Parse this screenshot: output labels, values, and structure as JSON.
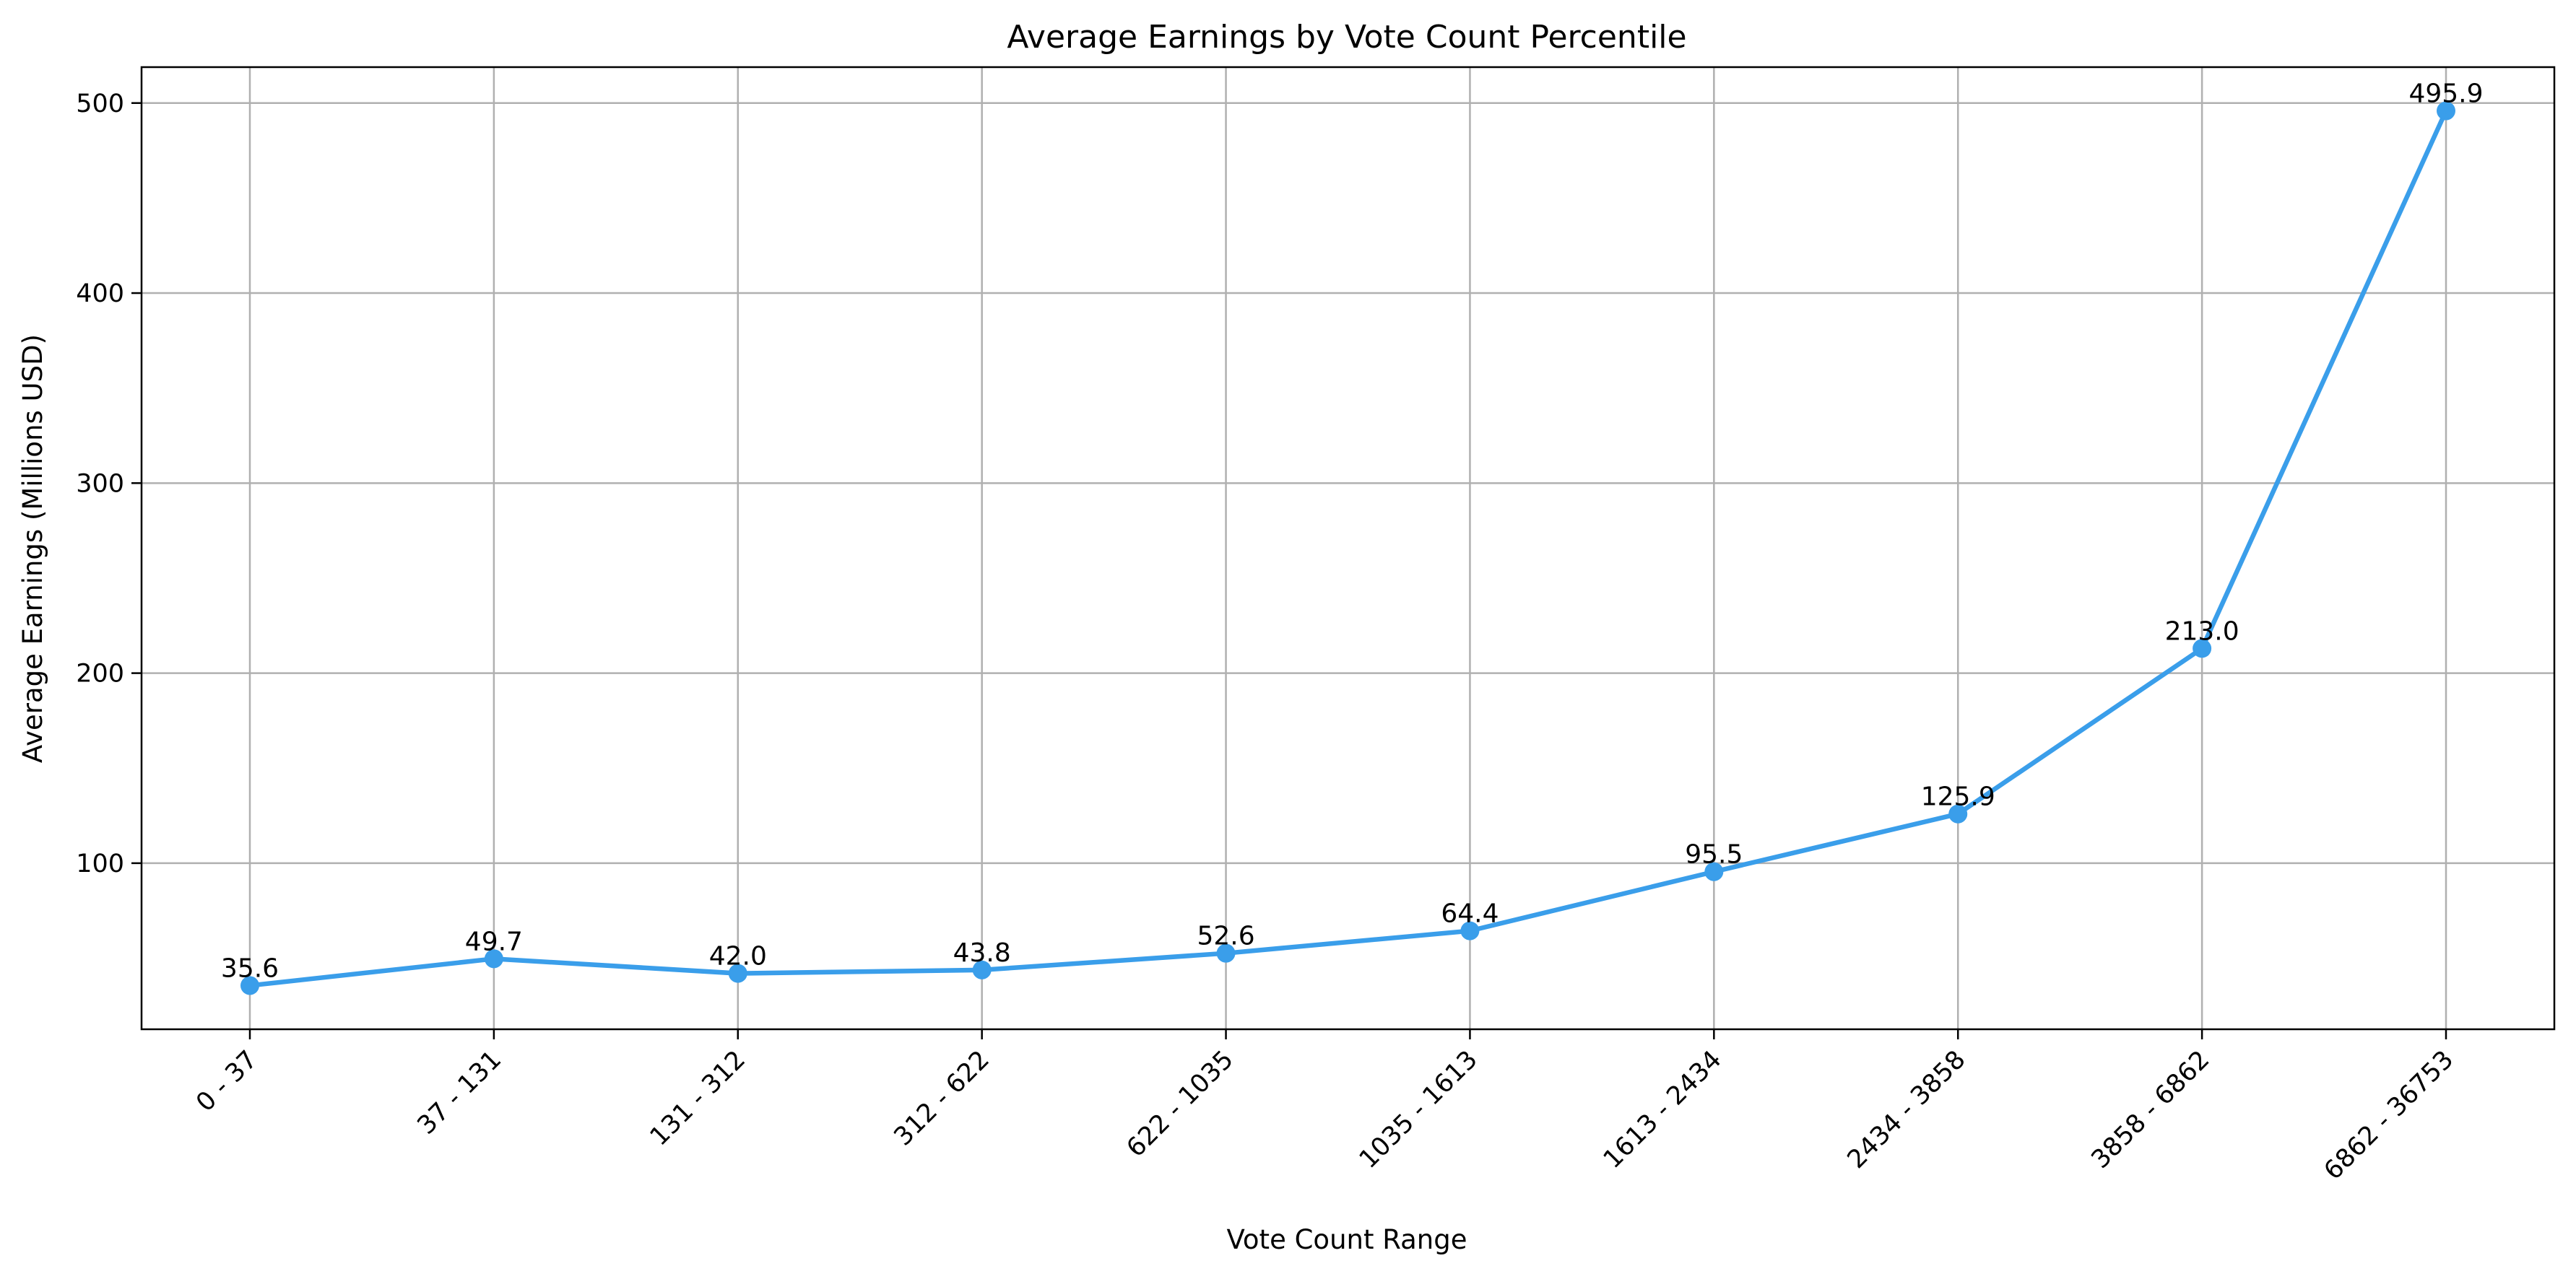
{
  "chart_data": {
    "type": "line",
    "title": "Average Earnings by Vote Count Percentile",
    "xlabel": "Vote Count Range",
    "ylabel": "Average Earnings (Millions USD)",
    "categories": [
      "0 - 37",
      "37 - 131",
      "131 - 312",
      "312 - 622",
      "622 - 1035",
      "1035 - 1613",
      "1613 - 2434",
      "2434 - 3858",
      "3858 - 6862",
      "6862 - 36753"
    ],
    "values": [
      35.6,
      49.7,
      42.0,
      43.8,
      52.6,
      64.4,
      95.5,
      125.9,
      213.0,
      495.9
    ],
    "data_labels": [
      "35.6",
      "49.7",
      "42.0",
      "43.8",
      "52.6",
      "64.4",
      "95.5",
      "125.9",
      "213.0",
      "495.9"
    ],
    "ylim": [
      12.6,
      518.9
    ],
    "yticks": [
      100,
      200,
      300,
      400,
      500
    ],
    "ytick_labels": [
      "100",
      "200",
      "300",
      "400",
      "500"
    ],
    "grid": true,
    "legend": "none",
    "colors": {
      "line": "#3a9eea",
      "grid": "#b0b0b0",
      "axis": "#000000"
    }
  }
}
